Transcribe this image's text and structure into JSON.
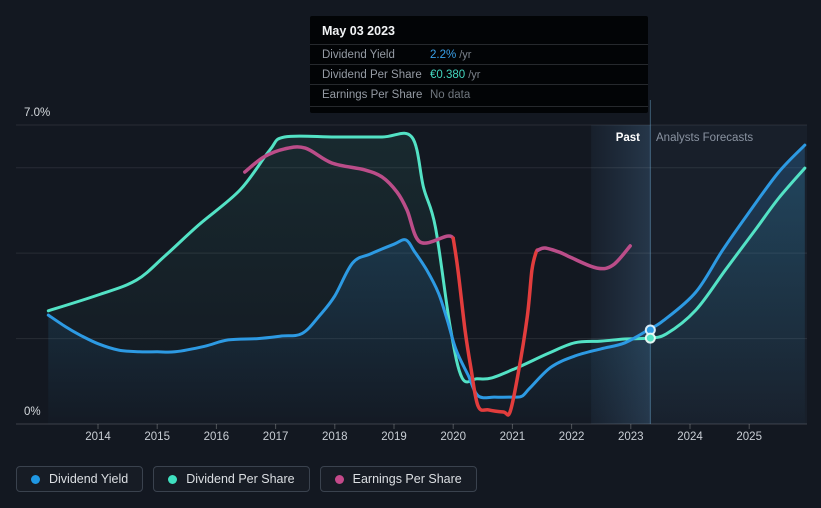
{
  "tooltip": {
    "date": "May 03 2023",
    "rows": [
      {
        "label": "Dividend Yield",
        "value": "2.2%",
        "unit": "/yr",
        "value_color": "#3aa0e8"
      },
      {
        "label": "Dividend Per Share",
        "value": "€0.380",
        "unit": "/yr",
        "value_color": "#43d6bf"
      },
      {
        "label": "Earnings Per Share",
        "value": "No data",
        "unit": "",
        "value_color": "#70777f"
      }
    ]
  },
  "chart": {
    "past_label": "Past",
    "forecast_label": "Analysts Forecasts",
    "y_axis": {
      "top_label": "7.0%",
      "bottom_label": "0%"
    },
    "x_years": [
      "2014",
      "2015",
      "2016",
      "2017",
      "2018",
      "2019",
      "2020",
      "2021",
      "2022",
      "2023",
      "2024",
      "2025"
    ]
  },
  "legend": {
    "items": [
      {
        "label": "Dividend Yield",
        "color": "#1f97e3"
      },
      {
        "label": "Dividend Per Share",
        "color": "#3fe0c0"
      },
      {
        "label": "Earnings Per Share",
        "color": "#c4498a"
      }
    ]
  },
  "chart_data": {
    "type": "line",
    "x_unit": "year_decimal",
    "x_range": [
      2013.16,
      2025.94
    ],
    "y_axis": {
      "unit": "percent",
      "min": 0,
      "max": 7,
      "labeled_gridlines": [
        7,
        0
      ],
      "unlabeled_gridlines": [
        6,
        4,
        2
      ]
    },
    "past_band_x": [
      2022.33,
      2023.33
    ],
    "past_forecast_boundary_x": 2023.33,
    "marker": {
      "date": "May 03 2023",
      "x": 2023.33,
      "dividend_yield_pct": 2.2,
      "dividend_per_share_eur": 0.38,
      "dividend_per_share_visual_pct": 2.01,
      "earnings_per_share": "No data"
    },
    "series": [
      {
        "name": "Dividend Yield",
        "color": "#2d9ae3",
        "axis": "percent",
        "points": [
          [
            2013.16,
            2.55
          ],
          [
            2013.45,
            2.28
          ],
          [
            2013.7,
            2.08
          ],
          [
            2014.0,
            1.88
          ],
          [
            2014.35,
            1.73
          ],
          [
            2014.7,
            1.69
          ],
          [
            2015.0,
            1.69
          ],
          [
            2015.3,
            1.69
          ],
          [
            2015.8,
            1.82
          ],
          [
            2016.2,
            1.97
          ],
          [
            2016.7,
            2.0
          ],
          [
            2017.1,
            2.06
          ],
          [
            2017.45,
            2.12
          ],
          [
            2017.75,
            2.55
          ],
          [
            2018.0,
            3.0
          ],
          [
            2018.3,
            3.77
          ],
          [
            2018.6,
            3.98
          ],
          [
            2019.0,
            4.21
          ],
          [
            2019.2,
            4.31
          ],
          [
            2019.35,
            4.03
          ],
          [
            2019.55,
            3.61
          ],
          [
            2019.75,
            3.07
          ],
          [
            2019.9,
            2.43
          ],
          [
            2020.05,
            1.73
          ],
          [
            2020.25,
            1.15
          ],
          [
            2020.42,
            0.66
          ],
          [
            2020.7,
            0.63
          ],
          [
            2021.0,
            0.63
          ],
          [
            2021.16,
            0.65
          ],
          [
            2021.3,
            0.85
          ],
          [
            2021.65,
            1.33
          ],
          [
            2022.05,
            1.59
          ],
          [
            2022.5,
            1.76
          ],
          [
            2022.9,
            1.9
          ],
          [
            2023.29,
            2.2
          ],
          [
            2023.55,
            2.42
          ],
          [
            2024.1,
            3.09
          ],
          [
            2024.55,
            4.07
          ],
          [
            2025.0,
            4.96
          ],
          [
            2025.5,
            5.9
          ],
          [
            2025.94,
            6.53
          ]
        ]
      },
      {
        "name": "Dividend Per Share",
        "color": "#53e2c5",
        "axis": "percent_visual",
        "eur_per_visual_unit": 0.189,
        "points": [
          [
            2013.16,
            2.65
          ],
          [
            2014.0,
            3.02
          ],
          [
            2014.65,
            3.37
          ],
          [
            2015.15,
            3.96
          ],
          [
            2015.7,
            4.66
          ],
          [
            2016.4,
            5.48
          ],
          [
            2016.9,
            6.41
          ],
          [
            2017.15,
            6.72
          ],
          [
            2018.0,
            6.72
          ],
          [
            2018.8,
            6.72
          ],
          [
            2019.3,
            6.72
          ],
          [
            2019.5,
            5.53
          ],
          [
            2019.7,
            4.61
          ],
          [
            2019.95,
            2.27
          ],
          [
            2020.15,
            1.08
          ],
          [
            2020.4,
            1.06
          ],
          [
            2020.65,
            1.08
          ],
          [
            2021.1,
            1.33
          ],
          [
            2021.6,
            1.65
          ],
          [
            2022.05,
            1.9
          ],
          [
            2022.5,
            1.94
          ],
          [
            2022.9,
            1.99
          ],
          [
            2023.29,
            2.01
          ],
          [
            2023.6,
            2.11
          ],
          [
            2024.1,
            2.67
          ],
          [
            2024.6,
            3.61
          ],
          [
            2025.1,
            4.54
          ],
          [
            2025.5,
            5.29
          ],
          [
            2025.94,
            5.99
          ]
        ]
      },
      {
        "name": "Earnings Per Share",
        "color": "#bb4d89",
        "negative_color": "#e23d3d",
        "axis": "percent_visual",
        "segments": [
          {
            "color": "#bb4d89",
            "points": [
              [
                2016.48,
                5.9
              ],
              [
                2016.8,
                6.25
              ],
              [
                2017.15,
                6.44
              ],
              [
                2017.5,
                6.46
              ],
              [
                2017.95,
                6.11
              ],
              [
                2018.5,
                5.95
              ],
              [
                2018.8,
                5.78
              ],
              [
                2019.05,
                5.43
              ],
              [
                2019.22,
                5.01
              ],
              [
                2019.44,
                4.26
              ],
              [
                2019.9,
                4.4
              ],
              [
                2020.0,
                4.35
              ]
            ]
          },
          {
            "color": "#e23d3d",
            "points": [
              [
                2020.0,
                4.35
              ],
              [
                2020.08,
                3.61
              ],
              [
                2020.2,
                2.2
              ],
              [
                2020.3,
                1.3
              ],
              [
                2020.42,
                0.42
              ],
              [
                2020.6,
                0.33
              ],
              [
                2020.85,
                0.28
              ],
              [
                2020.96,
                0.28
              ],
              [
                2021.1,
                1.2
              ],
              [
                2021.25,
                2.5
              ],
              [
                2021.33,
                3.6
              ],
              [
                2021.4,
                4.02
              ],
              [
                2021.43,
                4.07
              ]
            ]
          },
          {
            "color": "#bb4d89",
            "points": [
              [
                2021.43,
                4.07
              ],
              [
                2021.55,
                4.12
              ],
              [
                2021.8,
                4.02
              ],
              [
                2022.0,
                3.89
              ],
              [
                2022.43,
                3.65
              ],
              [
                2022.7,
                3.72
              ],
              [
                2022.99,
                4.17
              ]
            ]
          }
        ]
      }
    ]
  }
}
